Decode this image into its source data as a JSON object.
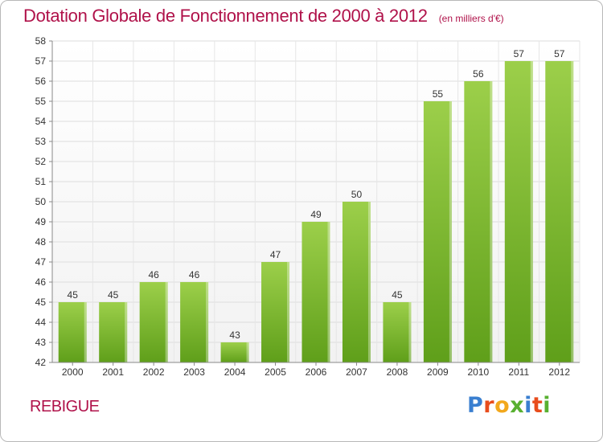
{
  "title": "Dotation Globale de Fonctionnement de 2000 à 2012",
  "unit_note": "(en milliers d'€)",
  "commune": "REBIGUE",
  "logo": {
    "text": "Proxiti"
  },
  "colors": {
    "title": "#b0124a",
    "bar_top": "#9ccf4a",
    "bar_bottom": "#5f9f1a",
    "grid": "#dddddd"
  },
  "chart_data": {
    "type": "bar",
    "categories": [
      "2000",
      "2001",
      "2002",
      "2003",
      "2004",
      "2005",
      "2006",
      "2007",
      "2008",
      "2009",
      "2010",
      "2011",
      "2012"
    ],
    "values": [
      45,
      45,
      46,
      46,
      43,
      47,
      49,
      50,
      45,
      55,
      56,
      57,
      57
    ],
    "ylim": [
      42,
      58
    ],
    "yticks": [
      42,
      43,
      44,
      45,
      46,
      47,
      48,
      49,
      50,
      51,
      52,
      53,
      54,
      55,
      56,
      57,
      58
    ],
    "grid": true,
    "xlabel": "",
    "ylabel": ""
  }
}
